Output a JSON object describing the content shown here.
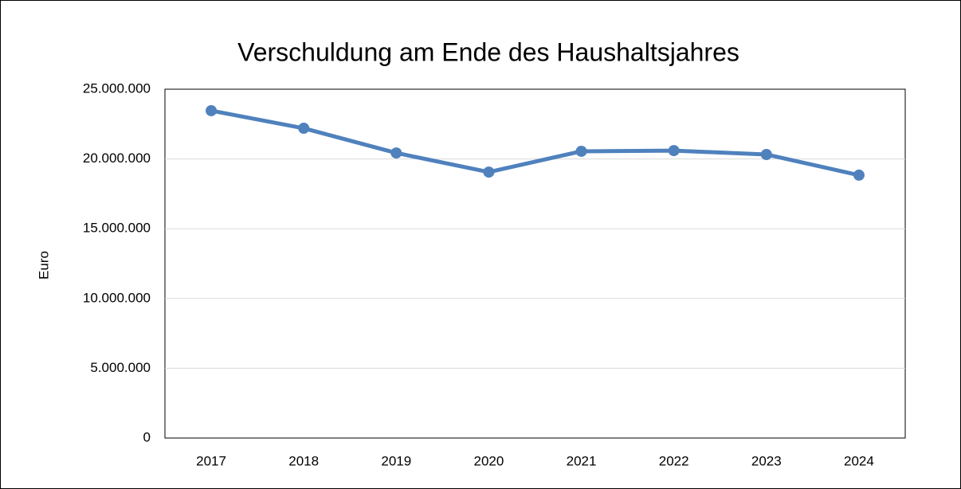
{
  "chart_data": {
    "type": "line",
    "title": "Verschuldung am Ende des Haushaltsjahres",
    "y_label": "Euro",
    "categories": [
      "2017",
      "2018",
      "2019",
      "2020",
      "2021",
      "2022",
      "2023",
      "2024"
    ],
    "series": [
      {
        "name": "Verschuldung",
        "color": "#4f81bd",
        "values": [
          23460000,
          22200000,
          20430000,
          19060000,
          20550000,
          20600000,
          20320000,
          18840000
        ]
      }
    ],
    "ylim": [
      0,
      25000000
    ],
    "yticks": [
      0,
      {
        "value": 5000000,
        "label": "5.000.000"
      },
      {
        "value": 10000000,
        "label": "10.000.000"
      },
      {
        "value": 15000000,
        "label": "15.000.000"
      },
      {
        "value": 20000000,
        "label": "20.000.000"
      },
      {
        "value": 25000000,
        "label": "25.000.000"
      }
    ],
    "grid": true
  }
}
